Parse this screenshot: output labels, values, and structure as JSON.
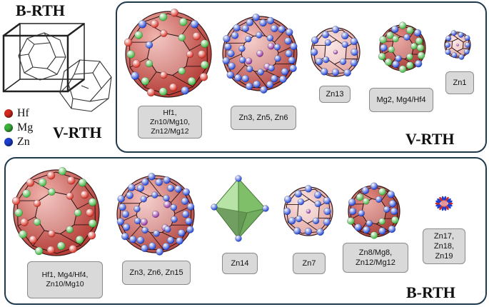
{
  "titles": {
    "brth_top": "B-RTH",
    "vrth_left": "V-RTH",
    "vrth_panel": "V-RTH",
    "brth_panel": "B-RTH"
  },
  "legend": [
    {
      "name": "Hf",
      "color": "#d42a1e"
    },
    {
      "name": "Mg",
      "color": "#3cb23c"
    },
    {
      "name": "Zn",
      "color": "#1c3fd1"
    }
  ],
  "vrth": {
    "labels": [
      "Hf1,\nZn10/Mg10,\nZn12/Mg12",
      "Zn3, Zn5, Zn6",
      "Zn13",
      "Mg2, Mg4/Hf4",
      "Zn1"
    ]
  },
  "brth": {
    "labels": [
      "Hf1, Mg4/Hf4,\nZn10/Mg10",
      "Zn3, Zn6, Zn15",
      "Zn14",
      "Zn7",
      "Zn8/Mg8,\nZn12/Mg12",
      "Zn17, Zn18,\nZn19"
    ]
  },
  "colors": {
    "panel_border": "#1f3a4d",
    "polyhedron_red": "#c95a55",
    "polyhedron_green": "#8fd07a",
    "label_bg": "#d9d9d9"
  }
}
